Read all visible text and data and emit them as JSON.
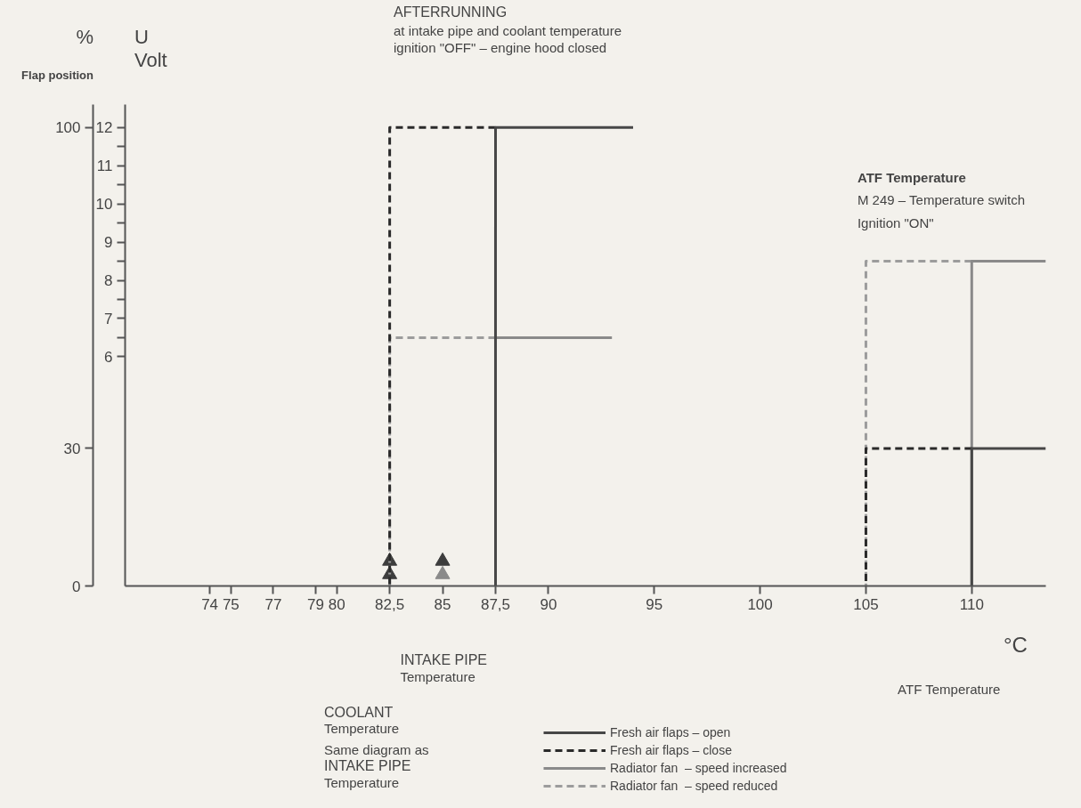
{
  "chart_data": {
    "type": "line",
    "xlabel": "°C",
    "ylabel": "%",
    "y2label": "U Volt",
    "xlim": [
      70,
      113.5
    ],
    "xticks": [
      74,
      75,
      77,
      79,
      80,
      {
        "value": 82.5,
        "label": "82,5"
      },
      85,
      {
        "value": 87.5,
        "label": "87,5"
      },
      90,
      95,
      100,
      105,
      110
    ],
    "ylim": [
      0,
      105
    ],
    "yticks": [
      0,
      30,
      100
    ],
    "y2lim": [
      0,
      12.6
    ],
    "y2ticks": [
      6,
      {
        "value": 6.5,
        "label": null
      },
      7,
      {
        "value": 7.5,
        "label": null
      },
      8,
      {
        "value": 8.5,
        "label": null
      },
      9,
      {
        "value": 9.5,
        "label": null
      },
      10,
      {
        "value": 10.5,
        "label": null
      },
      11,
      {
        "value": 11.5,
        "label": null
      },
      12
    ],
    "grid": false,
    "legend": "bottom",
    "series": [
      {
        "name": "Fresh air flaps – open",
        "color": "#474747",
        "line_style": "solid",
        "axis": "y2",
        "x": [
          87.5,
          87.5,
          94,
          null,
          110,
          110,
          113.5
        ],
        "values": [
          0,
          12,
          12,
          null,
          0,
          3.6,
          3.6
        ]
      },
      {
        "name": "Fresh air flaps – close",
        "color": "#2a2a2a",
        "line_style": "dashed",
        "axis": "y2",
        "x": [
          87.5,
          82.5,
          82.5,
          null,
          110,
          105,
          105
        ],
        "values": [
          12,
          12,
          0,
          null,
          3.6,
          3.6,
          0
        ]
      },
      {
        "name": "Radiator fan  – speed increased",
        "color": "#8a8a8a",
        "line_style": "solid",
        "axis": "y2",
        "x": [
          87.5,
          93,
          null,
          110,
          110,
          113.5
        ],
        "values": [
          6.5,
          6.5,
          null,
          0,
          8.5,
          8.5
        ]
      },
      {
        "name": "Radiator fan  – speed reduced",
        "color": "#9c9c9c",
        "line_style": "dashed",
        "axis": "y2",
        "x": [
          87.5,
          82.5,
          82.5,
          null,
          110,
          105,
          105
        ],
        "values": [
          6.5,
          6.5,
          0,
          null,
          8.5,
          8.5,
          0
        ]
      },
      {
        "type": "scatter",
        "marker": "triangle",
        "axis": "y2",
        "x": [
          82.5,
          82.5,
          85,
          85
        ],
        "values": [
          0.3,
          0.65,
          0.65,
          0.3
        ],
        "colors": [
          "#3d3d3d",
          "#3d3d3d",
          "#3d3d3d",
          "#8a8a8a"
        ]
      }
    ],
    "annotations": [
      "AFTERRUNNING",
      "at intake pipe and coolant temperature",
      "ignition \"OFF\" – engine hood closed",
      "ATF Temperature",
      "M 249 – Temperature switch",
      "Ignition \"ON\"",
      "INTAKE PIPE",
      "Temperature",
      "COOLANT",
      "Temperature",
      "Same diagram as",
      "INTAKE PIPE",
      "Temperature",
      "ATF Temperature",
      "Flap position"
    ]
  }
}
